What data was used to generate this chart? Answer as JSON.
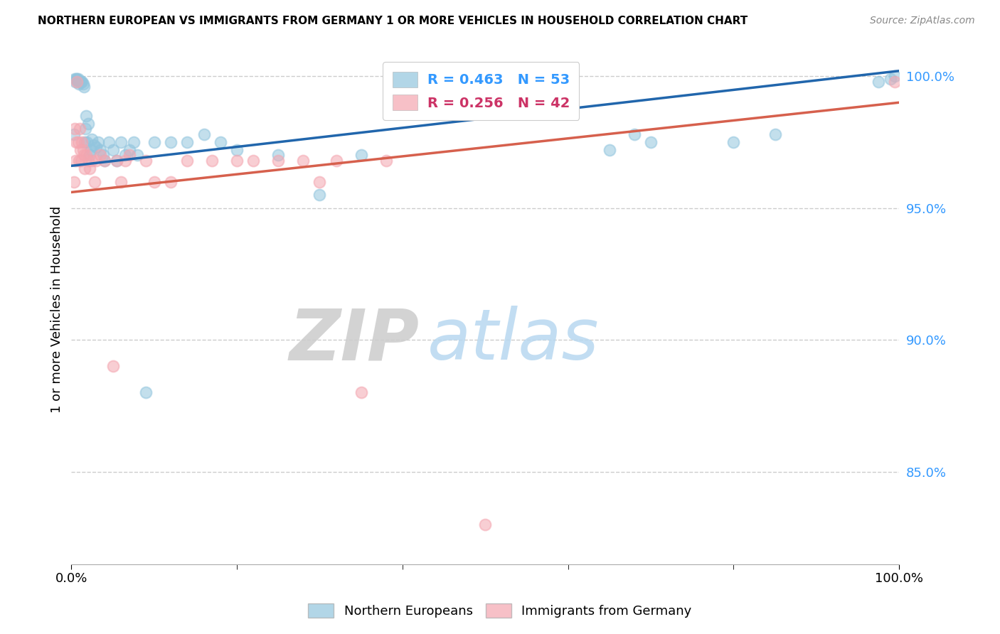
{
  "title": "NORTHERN EUROPEAN VS IMMIGRANTS FROM GERMANY 1 OR MORE VEHICLES IN HOUSEHOLD CORRELATION CHART",
  "source": "Source: ZipAtlas.com",
  "ylabel": "1 or more Vehicles in Household",
  "legend_label1": "Northern Europeans",
  "legend_label2": "Immigrants from Germany",
  "R1": 0.463,
  "N1": 53,
  "R2": 0.256,
  "N2": 42,
  "blue_color": "#92c5de",
  "pink_color": "#f4a6b0",
  "blue_line_color": "#2166ac",
  "pink_line_color": "#d6604d",
  "watermark_zip": "ZIP",
  "watermark_atlas": "atlas",
  "xlim": [
    0.0,
    1.0
  ],
  "ylim": [
    0.815,
    1.008
  ],
  "yticks": [
    0.85,
    0.9,
    0.95,
    1.0
  ],
  "ytick_labels": [
    "85.0%",
    "90.0%",
    "95.0%",
    "100.0%"
  ],
  "blue_x": [
    0.003,
    0.004,
    0.005,
    0.006,
    0.007,
    0.008,
    0.009,
    0.01,
    0.011,
    0.012,
    0.013,
    0.014,
    0.015,
    0.016,
    0.017,
    0.018,
    0.019,
    0.02,
    0.022,
    0.024,
    0.025,
    0.027,
    0.03,
    0.032,
    0.035,
    0.038,
    0.04,
    0.045,
    0.05,
    0.055,
    0.06,
    0.065,
    0.07,
    0.075,
    0.08,
    0.09,
    0.1,
    0.12,
    0.14,
    0.16,
    0.18,
    0.2,
    0.25,
    0.3,
    0.35,
    0.65,
    0.68,
    0.7,
    0.8,
    0.85,
    0.975,
    0.99,
    0.995
  ],
  "blue_y": [
    0.978,
    0.999,
    0.998,
    0.999,
    0.999,
    0.999,
    0.997,
    0.998,
    0.998,
    0.998,
    0.998,
    0.997,
    0.996,
    0.975,
    0.98,
    0.985,
    0.975,
    0.982,
    0.97,
    0.972,
    0.976,
    0.974,
    0.973,
    0.975,
    0.972,
    0.97,
    0.968,
    0.975,
    0.972,
    0.968,
    0.975,
    0.97,
    0.972,
    0.975,
    0.97,
    0.88,
    0.975,
    0.975,
    0.975,
    0.978,
    0.975,
    0.972,
    0.97,
    0.955,
    0.97,
    0.972,
    0.978,
    0.975,
    0.975,
    0.978,
    0.998,
    0.999,
    1.0
  ],
  "pink_x": [
    0.003,
    0.004,
    0.005,
    0.006,
    0.007,
    0.008,
    0.009,
    0.01,
    0.011,
    0.012,
    0.013,
    0.014,
    0.015,
    0.016,
    0.018,
    0.02,
    0.022,
    0.025,
    0.028,
    0.03,
    0.035,
    0.04,
    0.05,
    0.055,
    0.06,
    0.065,
    0.07,
    0.09,
    0.1,
    0.12,
    0.14,
    0.17,
    0.2,
    0.22,
    0.25,
    0.28,
    0.3,
    0.32,
    0.35,
    0.38,
    0.5,
    0.995
  ],
  "pink_y": [
    0.96,
    0.98,
    0.968,
    0.975,
    0.998,
    0.975,
    0.968,
    0.98,
    0.972,
    0.968,
    0.975,
    0.972,
    0.97,
    0.965,
    0.97,
    0.968,
    0.965,
    0.968,
    0.96,
    0.968,
    0.97,
    0.968,
    0.89,
    0.968,
    0.96,
    0.968,
    0.97,
    0.968,
    0.96,
    0.96,
    0.968,
    0.968,
    0.968,
    0.968,
    0.968,
    0.968,
    0.96,
    0.968,
    0.88,
    0.968,
    0.83,
    0.998
  ]
}
